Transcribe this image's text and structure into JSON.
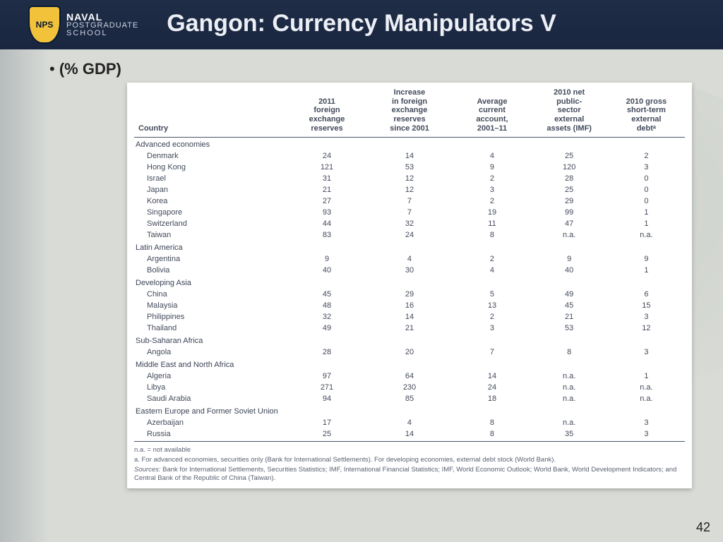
{
  "header": {
    "shield_text": "NPS",
    "school_l1": "NAVAL",
    "school_l2": "POSTGRADUATE",
    "school_l3": "SCHOOL",
    "title": "Gangon: Currency Manipulators V"
  },
  "bullet": "(% GDP)",
  "table": {
    "columns": [
      "Country",
      "2011 foreign exchange reserves",
      "Increase in foreign exchange reserves since 2001",
      "Average current account, 2001–11",
      "2010 net public-sector external assets (IMF)",
      "2010 gross short-term external debtᵃ"
    ],
    "col_widths_pct": [
      28,
      14,
      16,
      14,
      14,
      14
    ],
    "groups": [
      {
        "label": "Advanced economies",
        "rows": [
          [
            "Denmark",
            "24",
            "14",
            "4",
            "25",
            "2"
          ],
          [
            "Hong Kong",
            "121",
            "53",
            "9",
            "120",
            "3"
          ],
          [
            "Israel",
            "31",
            "12",
            "2",
            "28",
            "0"
          ],
          [
            "Japan",
            "21",
            "12",
            "3",
            "25",
            "0"
          ],
          [
            "Korea",
            "27",
            "7",
            "2",
            "29",
            "0"
          ],
          [
            "Singapore",
            "93",
            "7",
            "19",
            "99",
            "1"
          ],
          [
            "Switzerland",
            "44",
            "32",
            "11",
            "47",
            "1"
          ],
          [
            "Taiwan",
            "83",
            "24",
            "8",
            "n.a.",
            "n.a."
          ]
        ]
      },
      {
        "label": "Latin America",
        "rows": [
          [
            "Argentina",
            "9",
            "4",
            "2",
            "9",
            "9"
          ],
          [
            "Bolivia",
            "40",
            "30",
            "4",
            "40",
            "1"
          ]
        ]
      },
      {
        "label": "Developing Asia",
        "rows": [
          [
            "China",
            "45",
            "29",
            "5",
            "49",
            "6"
          ],
          [
            "Malaysia",
            "48",
            "16",
            "13",
            "45",
            "15"
          ],
          [
            "Philippines",
            "32",
            "14",
            "2",
            "21",
            "3"
          ],
          [
            "Thailand",
            "49",
            "21",
            "3",
            "53",
            "12"
          ]
        ]
      },
      {
        "label": "Sub-Saharan Africa",
        "rows": [
          [
            "Angola",
            "28",
            "20",
            "7",
            "8",
            "3"
          ]
        ]
      },
      {
        "label": "Middle East and North Africa",
        "rows": [
          [
            "Algeria",
            "97",
            "64",
            "14",
            "n.a.",
            "1"
          ],
          [
            "Libya",
            "271",
            "230",
            "24",
            "n.a.",
            "n.a."
          ],
          [
            "Saudi Arabia",
            "94",
            "85",
            "18",
            "n.a.",
            "n.a."
          ]
        ]
      },
      {
        "label": "Eastern Europe and Former Soviet Union",
        "rows": [
          [
            "Azerbaijan",
            "17",
            "4",
            "8",
            "n.a.",
            "3"
          ],
          [
            "Russia",
            "25",
            "14",
            "8",
            "35",
            "3"
          ]
        ]
      }
    ],
    "notes": {
      "na": "n.a. = not available",
      "a": "a. For advanced economies, securities only (Bank for International Settlements). For developing economies, external debt stock (World Bank).",
      "sources_label": "Sources:",
      "sources": "Bank for International Settlements, Securities Statistics; IMF, International Financial Statistics; IMF, World Economic Outlook; World Bank, World Development Indicators; and Central Bank of the Republic of China (Taiwan)."
    }
  },
  "page_number": "42",
  "style": {
    "header_bg": "#1a2640",
    "header_text": "#eceff5",
    "body_bg": "#d8dbd6",
    "table_rule": "#4a5468",
    "table_text": "#424a5a"
  }
}
